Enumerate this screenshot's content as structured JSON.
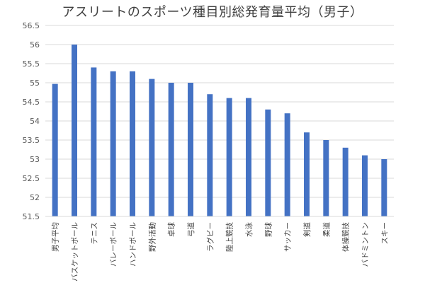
{
  "chart_data": {
    "type": "bar",
    "title": "アスリートのスポーツ種目別総発育量平均（男子）",
    "xlabel": "",
    "ylabel": "",
    "ylim": [
      51.5,
      56.5
    ],
    "ytick_step": 0.5,
    "yticks": [
      "51.5",
      "52",
      "52.5",
      "53",
      "53.5",
      "54",
      "54.5",
      "55",
      "55.5",
      "56",
      "56.5"
    ],
    "grid": true,
    "legend": "none",
    "bar_color": "#4472C4",
    "categories": [
      "男子平均",
      "バスケットボール",
      "テニス",
      "バレーボール",
      "ハンドボール",
      "野外活動",
      "卓球",
      "弓道",
      "ラグビー",
      "陸上競技",
      "水泳",
      "野球",
      "サッカー",
      "剣道",
      "柔道",
      "体操競技",
      "バドミントン",
      "スキー"
    ],
    "values": [
      54.97,
      56.0,
      55.4,
      55.3,
      55.3,
      55.1,
      55.0,
      55.0,
      54.7,
      54.6,
      54.6,
      54.3,
      54.2,
      53.7,
      53.5,
      53.3,
      53.1,
      53.0
    ]
  }
}
